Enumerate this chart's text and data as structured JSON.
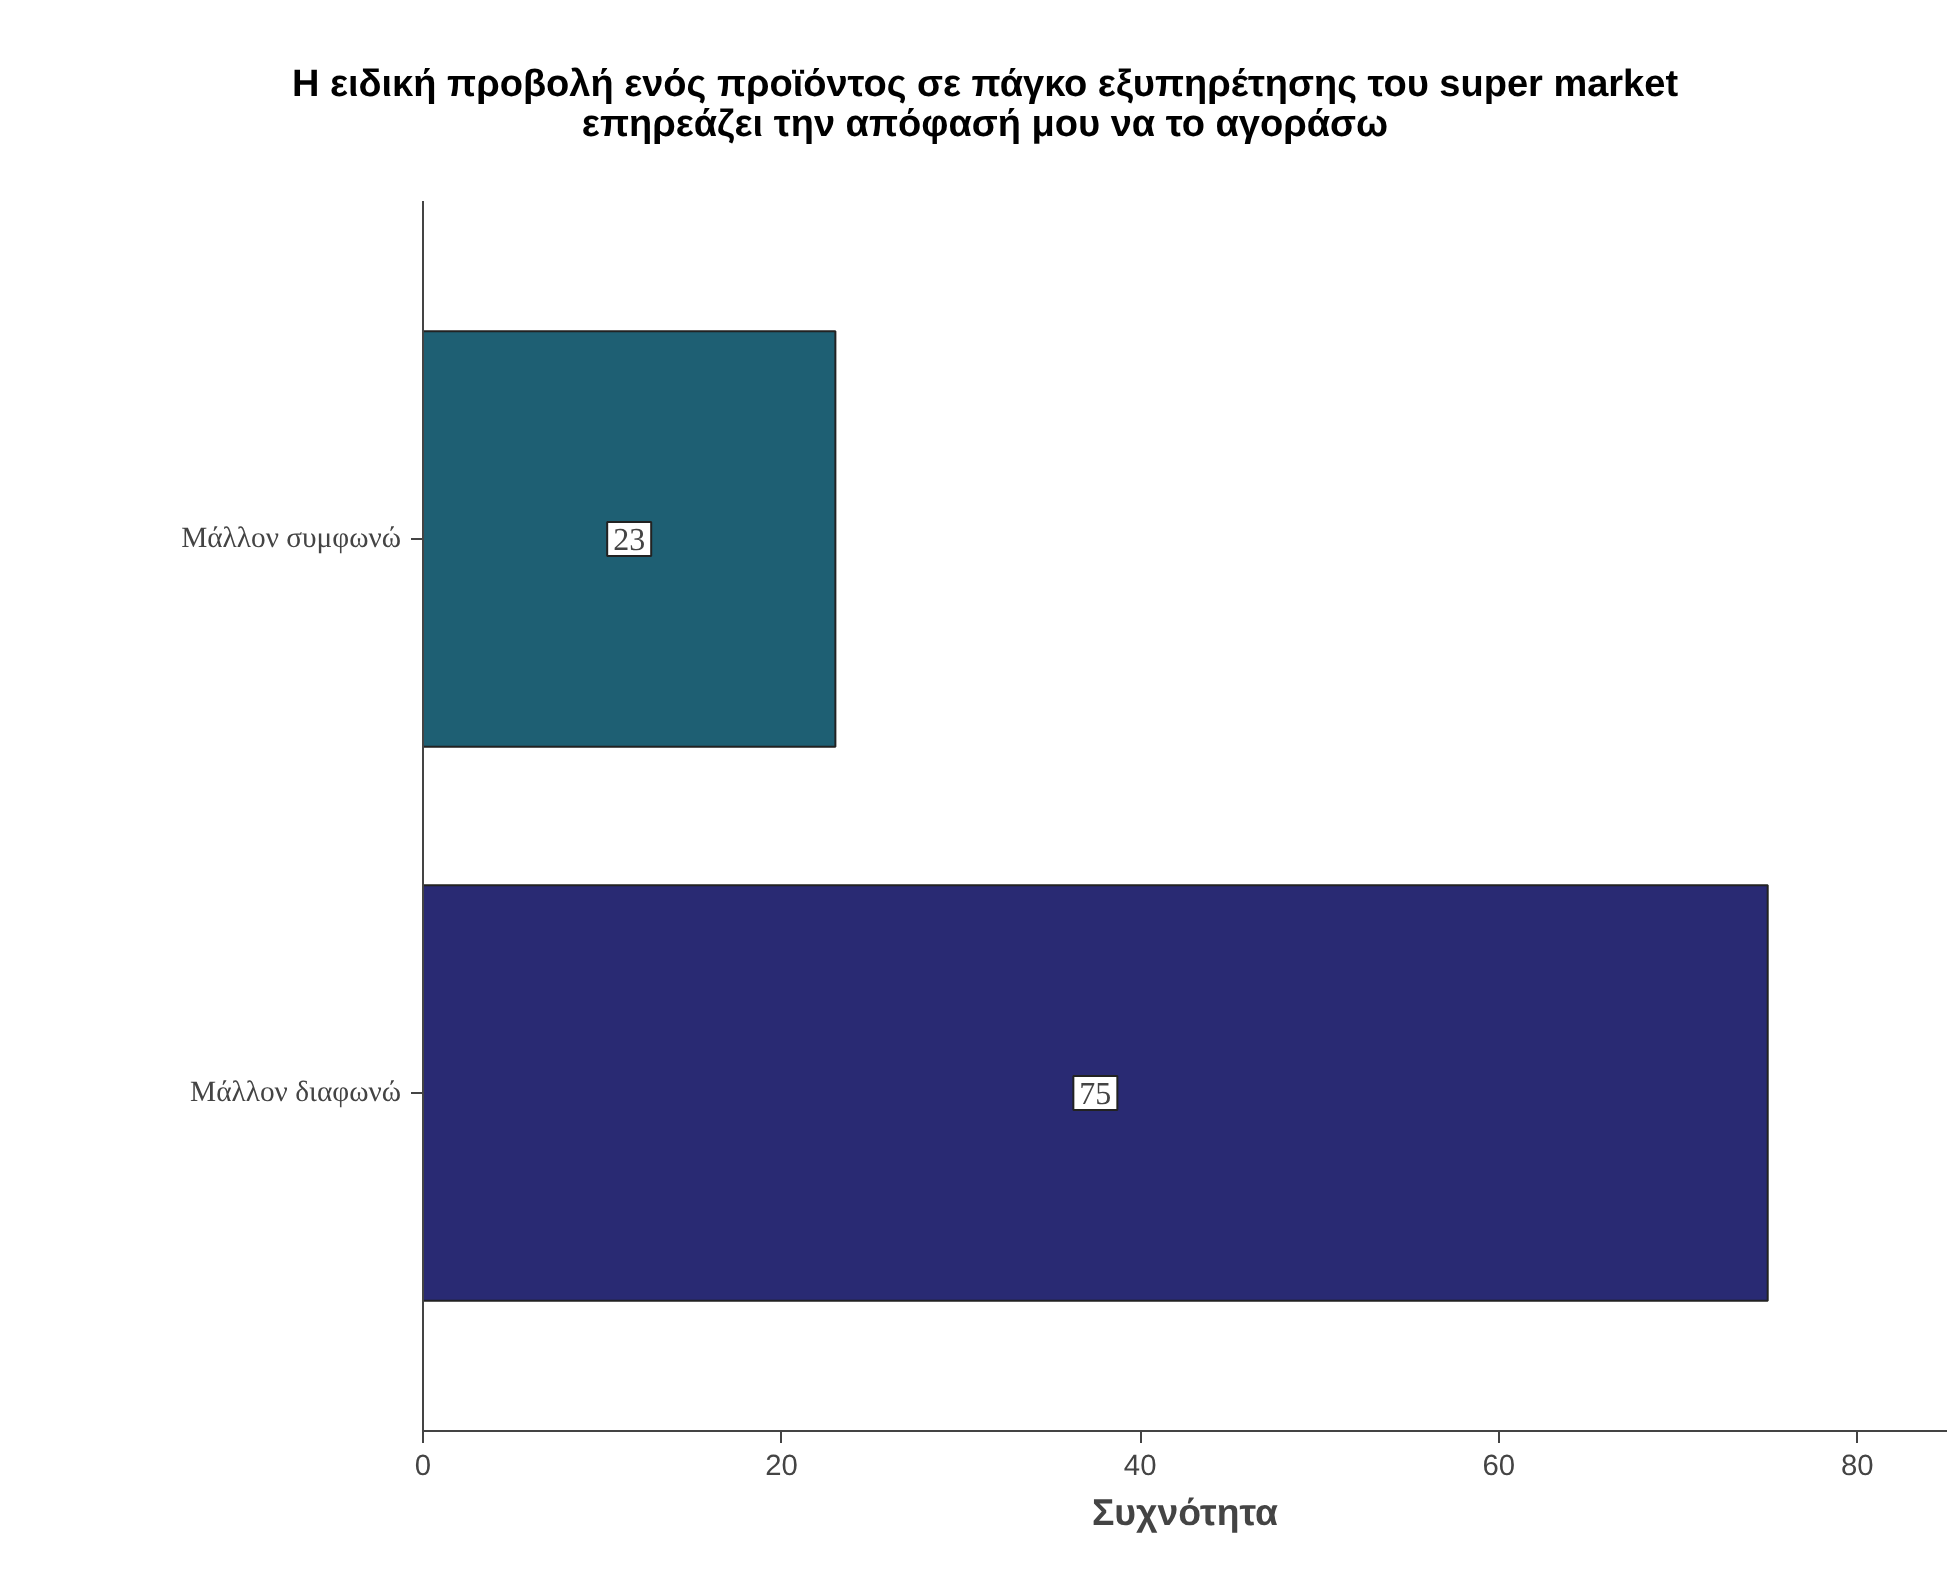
{
  "chart_data": {
    "type": "bar",
    "orientation": "horizontal",
    "title": "Η ειδική προβολή ενός προϊόντος σε πάγκο εξυπηρέτησης του super market\nεπηρεάζει την απόφασή μου να το αγοράσω",
    "xlabel": "Συχνότητα",
    "categories": [
      "Μάλλον συμφωνώ",
      "Μάλλον διαφωνώ"
    ],
    "values": [
      23,
      75
    ],
    "colors": [
      "#1e5f73",
      "#292a73"
    ],
    "xlim": [
      0,
      85
    ],
    "xticks": [
      0,
      20,
      40,
      60,
      80
    ],
    "data_labels": true,
    "grid": false
  }
}
